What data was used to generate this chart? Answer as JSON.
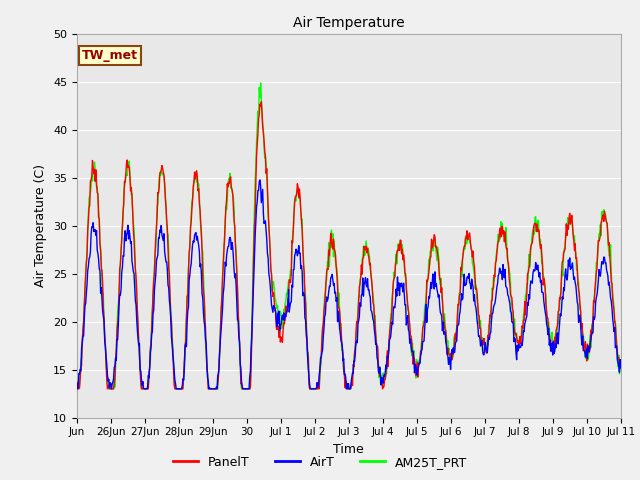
{
  "title": "Air Temperature",
  "xlabel": "Time",
  "ylabel": "Air Temperature (C)",
  "ylim": [
    10,
    50
  ],
  "background_color": "#f0f0f0",
  "plot_bg_color": "#e8e8e8",
  "grid_color": "white",
  "annotation_text": "TW_met",
  "annotation_bg": "#ffffcc",
  "annotation_border": "#8B4513",
  "annotation_text_color": "#990000",
  "legend_labels": [
    "PanelT",
    "AirT",
    "AM25T_PRT"
  ],
  "line_colors": {
    "PanelT": "red",
    "AirT": "blue",
    "AM25T_PRT": "lime"
  },
  "tick_labels": [
    "Jun",
    "26Jun",
    "27Jun",
    "28Jun",
    "29Jun",
    "30",
    "Jul 1",
    "Jul 2",
    "Jul 3",
    "Jul 4",
    "Jul 5",
    "Jul 6",
    "Jul 7",
    "Jul 8",
    "Jul 9",
    "Jul 10",
    "Jul 11"
  ],
  "tick_positions": [
    0,
    1,
    2,
    3,
    4,
    5,
    6,
    7,
    8,
    9,
    10,
    11,
    12,
    13,
    14,
    15,
    16
  ],
  "num_points": 800,
  "seed": 7
}
